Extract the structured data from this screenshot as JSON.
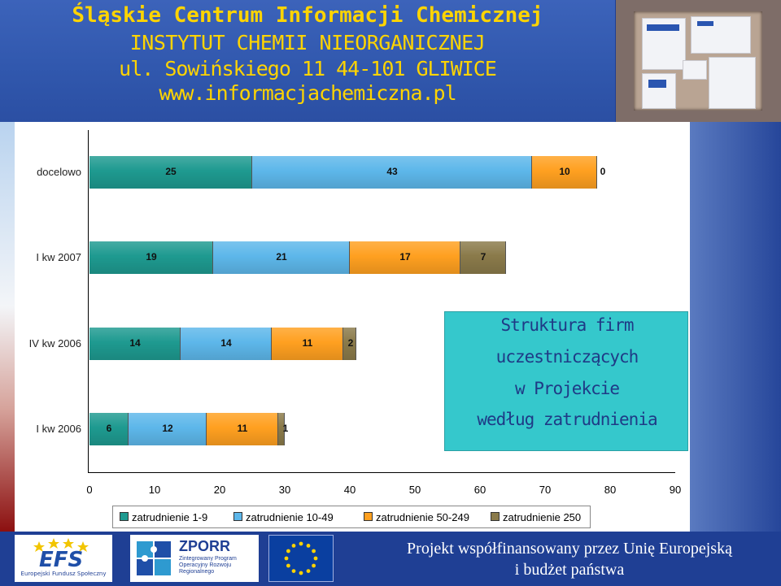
{
  "header": {
    "line1": "Śląskie Centrum Informacji Chemicznej",
    "line2": "INSTYTUT CHEMII NIEORGANICZNEJ",
    "line3": "ul. Sowińskiego 11   44-101 GLIWICE",
    "line4": "www.informacjachemiczna.pl"
  },
  "colors": {
    "series1": "#1e9a90",
    "series2": "#5db7ea",
    "series3": "#ffa020",
    "series4": "#8a7a4a"
  },
  "chart_data": {
    "type": "bar",
    "orientation": "horizontal",
    "stacked": true,
    "categories": [
      "docelowo",
      "I kw 2007",
      "IV kw 2006",
      "I kw 2006"
    ],
    "series": [
      {
        "name": "zatrudnienie 1-9",
        "values": [
          25,
          19,
          14,
          6
        ]
      },
      {
        "name": "zatrudnienie 10-49",
        "values": [
          43,
          21,
          14,
          12
        ]
      },
      {
        "name": "zatrudnienie 50-249",
        "values": [
          10,
          17,
          11,
          11
        ]
      },
      {
        "name": "zatrudnienie  250",
        "values": [
          0,
          7,
          2,
          1
        ]
      }
    ],
    "xlim": [
      0,
      90
    ],
    "xticks": [
      "0",
      "10",
      "20",
      "30",
      "40",
      "50",
      "60",
      "70",
      "80",
      "90"
    ],
    "title_lines": [
      "Struktura firm",
      "uczestniczących",
      "w Projekcie",
      "według zatrudnienia"
    ],
    "legend_placement": "bottom",
    "grid": false
  },
  "footer": {
    "efs_logo_text": "EFS",
    "efs_caption": "Europejski Fundusz Społeczny",
    "zporr_logo_text": "ZPORR",
    "zporr_caption": "Zintegrowany Program Operacyjny Rozwoju Regionalnego",
    "line1": "Projekt współfinansowany przez Unię Europejską",
    "line2": "i budżet państwa"
  }
}
